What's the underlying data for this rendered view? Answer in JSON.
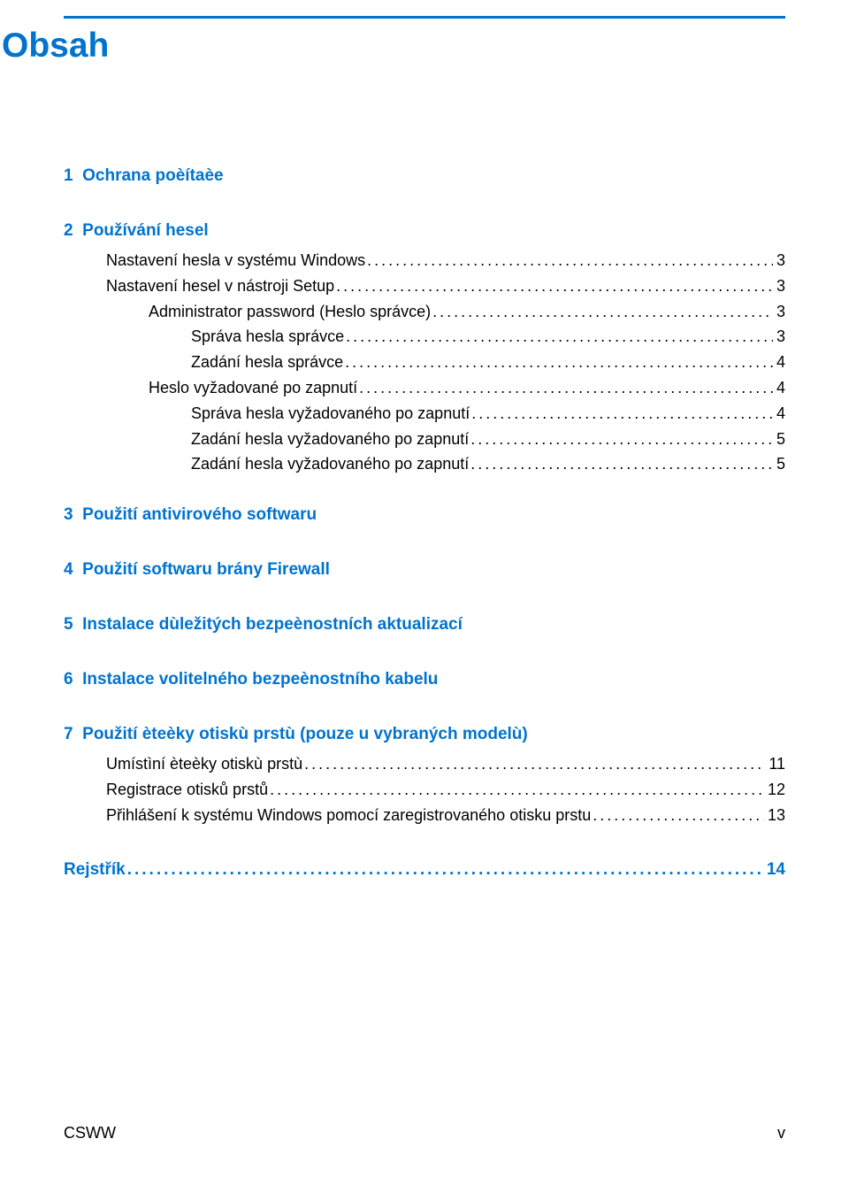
{
  "title": "Obsah",
  "colors": {
    "link": "#0073cf",
    "text": "#000000",
    "background": "#ffffff"
  },
  "fonts": {
    "title_size": 39,
    "heading_size": 19,
    "body_size": 18
  },
  "sections": {
    "s1": {
      "number": "1",
      "label": "Ochrana poèítaèe"
    },
    "s2": {
      "number": "2",
      "label": "Používání hesel",
      "items": {
        "i0": {
          "label": "Nastavení hesla v systému Windows",
          "page": "3",
          "indent": 1
        },
        "i1": {
          "label": "Nastavení hesel v nástroji Setup",
          "page": "3",
          "indent": 1
        },
        "i2": {
          "label": "Administrator password (Heslo správce)",
          "page": "3",
          "indent": 2
        },
        "i3": {
          "label": "Správa hesla správce",
          "page": "3",
          "indent": 3
        },
        "i4": {
          "label": "Zadání hesla správce",
          "page": "4",
          "indent": 3
        },
        "i5": {
          "label": "Heslo vyžadované po zapnutí",
          "page": "4",
          "indent": 2
        },
        "i6": {
          "label": "Správa hesla vyžadovaného po zapnutí",
          "page": "4",
          "indent": 3
        },
        "i7": {
          "label": "Zadání hesla vyžadovaného po zapnutí",
          "page": "5",
          "indent": 3
        },
        "i8": {
          "label": "Zadání hesla vyžadovaného po zapnutí",
          "page": "5",
          "indent": 3
        }
      }
    },
    "s3": {
      "number": "3",
      "label": "Použití antivirového softwaru"
    },
    "s4": {
      "number": "4",
      "label": "Použití softwaru brány Firewall"
    },
    "s5": {
      "number": "5",
      "label": "Instalace dùležitých bezpeènostních aktualizací"
    },
    "s6": {
      "number": "6",
      "label": "Instalace volitelného bezpeènostního kabelu"
    },
    "s7": {
      "number": "7",
      "label": "Použití èteèky otiskù prstù (pouze u vybraných modelù)",
      "items": {
        "i0": {
          "label": "Umístìní èteèky otiskù prstù",
          "page": "11",
          "indent": 1
        },
        "i1": {
          "label": "Registrace otisků prstů",
          "page": "12",
          "indent": 1
        },
        "i2": {
          "label": "Přihlášení k systému Windows pomocí zaregistrovaného otisku prstu",
          "page": "13",
          "indent": 1
        }
      }
    },
    "rejstrik": {
      "number": "",
      "label": "Rejstřík",
      "page": "14"
    }
  },
  "footer": {
    "left": "CSWW",
    "right": "v"
  }
}
